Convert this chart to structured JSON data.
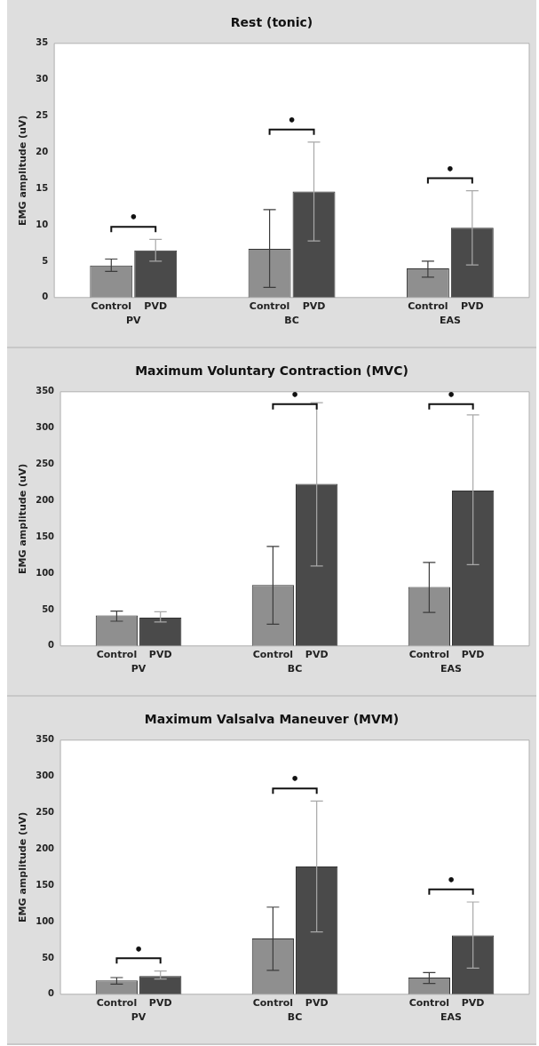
{
  "chart_data": [
    {
      "type": "bar",
      "title": "Rest (tonic)",
      "ylabel": "EMG amplitude (uV)",
      "categories": [
        "PV",
        "BC",
        "EAS"
      ],
      "series": [
        {
          "name": "Control",
          "color": "#8f8f8f",
          "values": [
            4.4,
            6.7,
            4.0
          ],
          "errors": [
            [
              3.6,
              5.3
            ],
            [
              1.4,
              12.1
            ],
            [
              2.8,
              5.0
            ]
          ]
        },
        {
          "name": "PVD",
          "color": "#4a4a4a",
          "values": [
            6.5,
            14.6,
            9.6
          ],
          "errors": [
            [
              5.0,
              8.0
            ],
            [
              7.8,
              21.4
            ],
            [
              4.5,
              14.7
            ]
          ]
        }
      ],
      "ylim": [
        0,
        35
      ],
      "yticks": [
        0,
        5,
        10,
        15,
        20,
        25,
        30,
        35
      ],
      "grid": false,
      "legend": false,
      "annotations": [
        "•",
        "•",
        "•"
      ]
    },
    {
      "type": "bar",
      "title": "Maximum Voluntary Contraction (MVC)",
      "ylabel": "EMG amplitude (uV)",
      "categories": [
        "PV",
        "BC",
        "EAS"
      ],
      "series": [
        {
          "name": "Control",
          "color": "#8f8f8f",
          "values": [
            42,
            84,
            81
          ],
          "errors": [
            [
              34,
              48
            ],
            [
              30,
              137
            ],
            [
              46,
              115
            ]
          ]
        },
        {
          "name": "PVD",
          "color": "#4a4a4a",
          "values": [
            39,
            223,
            214
          ],
          "errors": [
            [
              33,
              47
            ],
            [
              110,
              335
            ],
            [
              112,
              318
            ]
          ]
        }
      ],
      "ylim": [
        0,
        350
      ],
      "yticks": [
        0,
        50,
        100,
        150,
        200,
        250,
        300,
        350
      ],
      "grid": false,
      "legend": false,
      "annotations": [
        "•",
        "•"
      ]
    },
    {
      "type": "bar",
      "title": "Maximum Valsalva Maneuver (MVM)",
      "ylabel": "EMG amplitude (uV)",
      "categories": [
        "PV",
        "BC",
        "EAS"
      ],
      "series": [
        {
          "name": "Control",
          "color": "#8f8f8f",
          "values": [
            19,
            77,
            23
          ],
          "errors": [
            [
              14,
              23
            ],
            [
              33,
              120
            ],
            [
              15,
              30
            ]
          ]
        },
        {
          "name": "PVD",
          "color": "#4a4a4a",
          "values": [
            25,
            176,
            81
          ],
          "errors": [
            [
              21,
              32
            ],
            [
              86,
              266
            ],
            [
              36,
              127
            ]
          ]
        }
      ],
      "ylim": [
        0,
        350
      ],
      "yticks": [
        0,
        50,
        100,
        150,
        200,
        250,
        300,
        350
      ],
      "grid": false,
      "legend": false,
      "annotations": [
        "•",
        "•",
        "•"
      ]
    }
  ]
}
